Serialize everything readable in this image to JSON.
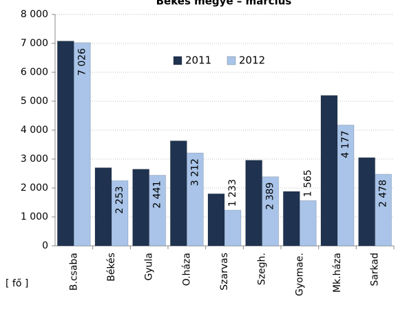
{
  "chart_data": {
    "type": "bar",
    "title": "Békés megye – március",
    "y_label": "[ fő ]",
    "categories": [
      "B.csaba",
      "Békés",
      "Gyula",
      "O.háza",
      "Szarvas",
      "Szegh.",
      "Gyomae.",
      "Mk.háza",
      "Sarkad"
    ],
    "series": [
      {
        "name": "2011",
        "color": "#1f3350",
        "values": [
          7080,
          2700,
          2650,
          3630,
          1800,
          2960,
          1880,
          5200,
          3050
        ]
      },
      {
        "name": "2012",
        "color": "#a9c4e8",
        "values": [
          7026,
          2253,
          2441,
          3212,
          1233,
          2389,
          1565,
          4177,
          2478
        ],
        "value_labels": [
          "7 026",
          "2 253",
          "2 441",
          "3 212",
          "1 233",
          "2 389",
          "1 565",
          "4 177",
          "2 478"
        ]
      }
    ],
    "ylim": [
      0,
      8000
    ],
    "yticks": [
      {
        "value": 0,
        "label": "0"
      },
      {
        "value": 1000,
        "label": "1 000"
      },
      {
        "value": 2000,
        "label": "2 000"
      },
      {
        "value": 3000,
        "label": "3 000"
      },
      {
        "value": 4000,
        "label": "4 000"
      },
      {
        "value": 5000,
        "label": "5 000"
      },
      {
        "value": 6000,
        "label": "6 000"
      },
      {
        "value": 7000,
        "label": "7 000"
      },
      {
        "value": 8000,
        "label": "8 000"
      }
    ],
    "grid": true,
    "legend": "top"
  }
}
